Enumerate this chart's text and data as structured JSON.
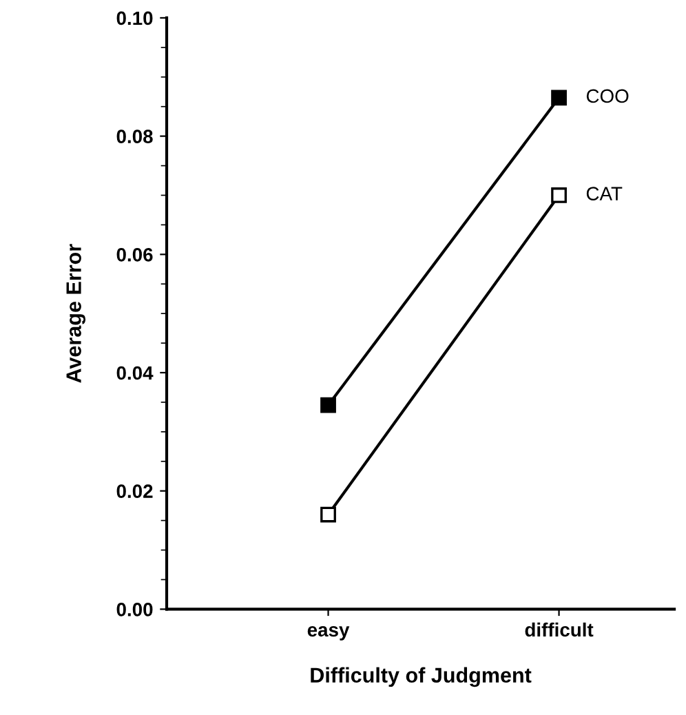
{
  "chart_data": {
    "type": "line",
    "xlabel": "Difficulty of Judgment",
    "ylabel": "Average Error",
    "categories": [
      "easy",
      "difficult"
    ],
    "series": [
      {
        "name": "COO",
        "color": "#000000",
        "values": [
          0.0345,
          0.0865
        ]
      },
      {
        "name": "CAT",
        "color": "#000000",
        "values": [
          0.016,
          0.07
        ]
      }
    ],
    "ylim": [
      0,
      0.1
    ],
    "yticks": [
      {
        "value": 0,
        "label": "0.00"
      },
      {
        "value": 0.02,
        "label": "0.02"
      },
      {
        "value": 0.04,
        "label": "0.04"
      },
      {
        "value": 0.06,
        "label": "0.06"
      },
      {
        "value": 0.08,
        "label": "0.08"
      },
      {
        "value": 0.1,
        "label": "0.10"
      }
    ],
    "marker": "square",
    "line_style": "solid",
    "grid": false,
    "legend": false
  }
}
